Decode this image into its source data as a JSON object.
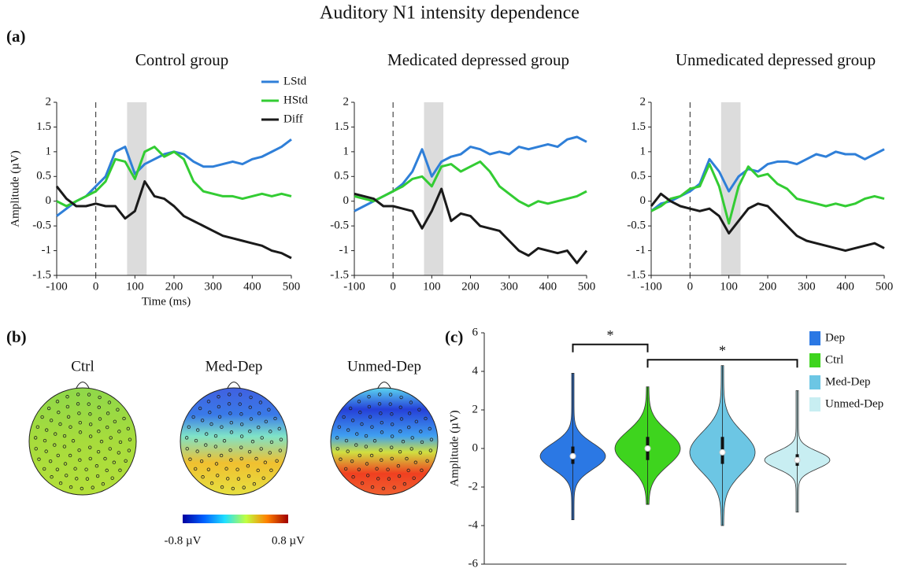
{
  "title": "Auditory N1 intensity dependence",
  "panel_labels": [
    "(a)",
    "(b)",
    "(c)"
  ],
  "topomaps": {
    "labels": [
      "Ctrl",
      "Med-Dep",
      "Unmed-Dep"
    ],
    "colorbar": {
      "min_label": "-0.8 µV",
      "max_label": "0.8 µV"
    }
  },
  "chart_data": [
    {
      "type": "line",
      "title": "Control group",
      "xlabel": "Time (ms)",
      "ylabel": "Amplitude (µV)",
      "legend": "upper right",
      "x": [
        -100,
        -75,
        -50,
        -25,
        0,
        25,
        50,
        75,
        100,
        125,
        150,
        175,
        200,
        225,
        250,
        275,
        300,
        325,
        350,
        375,
        400,
        425,
        450,
        475,
        500
      ],
      "xlim": [
        -100,
        500
      ],
      "xticks": [
        -100,
        0,
        100,
        200,
        300,
        400,
        500
      ],
      "ylim": [
        -1.5,
        2
      ],
      "yticks": [
        -1.5,
        -1,
        -0.5,
        0,
        0.5,
        1,
        1.5,
        2
      ],
      "shade": [
        80,
        130
      ],
      "vline": 0,
      "series": [
        {
          "name": "LStd",
          "color": "#2f7fd8",
          "values": [
            -0.3,
            -0.15,
            0,
            0.1,
            0.3,
            0.5,
            1.0,
            1.1,
            0.55,
            0.75,
            0.85,
            0.95,
            1.0,
            0.95,
            0.8,
            0.7,
            0.7,
            0.75,
            0.8,
            0.75,
            0.85,
            0.9,
            1.0,
            1.1,
            1.25
          ]
        },
        {
          "name": "HStd",
          "color": "#33cc33",
          "values": [
            0,
            -0.1,
            0,
            0.1,
            0.2,
            0.4,
            0.85,
            0.8,
            0.45,
            1.0,
            1.1,
            0.9,
            1.0,
            0.85,
            0.4,
            0.2,
            0.15,
            0.1,
            0.1,
            0.05,
            0.1,
            0.15,
            0.1,
            0.15,
            0.1
          ]
        },
        {
          "name": "Diff",
          "color": "#1a1a1a",
          "values": [
            0.3,
            0.05,
            -0.1,
            -0.1,
            -0.05,
            -0.1,
            -0.1,
            -0.35,
            -0.2,
            0.4,
            0.1,
            0.05,
            -0.1,
            -0.3,
            -0.4,
            -0.5,
            -0.6,
            -0.7,
            -0.75,
            -0.8,
            -0.85,
            -0.9,
            -1.0,
            -1.05,
            -1.15
          ]
        }
      ]
    },
    {
      "type": "line",
      "title": "Medicated depressed group",
      "x": [
        -100,
        -75,
        -50,
        -25,
        0,
        25,
        50,
        75,
        100,
        125,
        150,
        175,
        200,
        225,
        250,
        275,
        300,
        325,
        350,
        375,
        400,
        425,
        450,
        475,
        500
      ],
      "xlim": [
        -100,
        500
      ],
      "xticks": [
        -100,
        0,
        100,
        200,
        300,
        400,
        500
      ],
      "ylim": [
        -1.5,
        2
      ],
      "yticks": [
        -1.5,
        -1,
        -0.5,
        0,
        0.5,
        1,
        1.5,
        2
      ],
      "shade": [
        80,
        130
      ],
      "vline": 0,
      "series": [
        {
          "name": "LStd",
          "color": "#2f7fd8",
          "values": [
            -0.2,
            -0.1,
            0,
            0.1,
            0.2,
            0.35,
            0.6,
            1.05,
            0.5,
            0.8,
            0.9,
            0.95,
            1.1,
            1.05,
            0.95,
            1.0,
            0.95,
            1.1,
            1.05,
            1.1,
            1.15,
            1.1,
            1.25,
            1.3,
            1.2
          ]
        },
        {
          "name": "HStd",
          "color": "#33cc33",
          "values": [
            0.1,
            0.05,
            0,
            0.1,
            0.2,
            0.3,
            0.45,
            0.5,
            0.3,
            0.7,
            0.75,
            0.6,
            0.7,
            0.8,
            0.6,
            0.3,
            0.15,
            0,
            -0.1,
            0,
            -0.05,
            0,
            0.05,
            0.1,
            0.2
          ]
        },
        {
          "name": "Diff",
          "color": "#1a1a1a",
          "values": [
            0.15,
            0.1,
            0.05,
            -0.1,
            -0.1,
            -0.15,
            -0.2,
            -0.55,
            -0.2,
            0.25,
            -0.4,
            -0.25,
            -0.3,
            -0.5,
            -0.55,
            -0.6,
            -0.8,
            -1.0,
            -1.1,
            -0.95,
            -1.0,
            -1.05,
            -1.0,
            -1.25,
            -1.0
          ]
        }
      ]
    },
    {
      "type": "line",
      "title": "Unmedicated depressed group",
      "x": [
        -100,
        -75,
        -50,
        -25,
        0,
        25,
        50,
        75,
        100,
        125,
        150,
        175,
        200,
        225,
        250,
        275,
        300,
        325,
        350,
        375,
        400,
        425,
        450,
        475,
        500
      ],
      "xlim": [
        -100,
        500
      ],
      "xticks": [
        -100,
        0,
        100,
        200,
        300,
        400,
        500
      ],
      "ylim": [
        -1.5,
        2
      ],
      "yticks": [
        -1.5,
        -1,
        -0.5,
        0,
        0.5,
        1,
        1.5,
        2
      ],
      "shade": [
        80,
        130
      ],
      "vline": 0,
      "series": [
        {
          "name": "LStd",
          "color": "#2f7fd8",
          "values": [
            -0.2,
            -0.05,
            0,
            0.1,
            0.2,
            0.35,
            0.85,
            0.6,
            0.2,
            0.5,
            0.65,
            0.6,
            0.75,
            0.8,
            0.8,
            0.75,
            0.85,
            0.95,
            0.9,
            1.0,
            0.95,
            0.95,
            0.85,
            0.95,
            1.05
          ]
        },
        {
          "name": "HStd",
          "color": "#33cc33",
          "values": [
            -0.2,
            -0.1,
            0.05,
            0.1,
            0.25,
            0.3,
            0.75,
            0.3,
            -0.45,
            0.3,
            0.7,
            0.5,
            0.55,
            0.35,
            0.25,
            0.05,
            0,
            -0.05,
            -0.1,
            -0.05,
            -0.1,
            -0.05,
            0.05,
            0.1,
            0.05
          ]
        },
        {
          "name": "Diff",
          "color": "#1a1a1a",
          "values": [
            -0.1,
            0.15,
            0,
            -0.1,
            -0.15,
            -0.2,
            -0.15,
            -0.3,
            -0.65,
            -0.4,
            -0.15,
            -0.05,
            -0.1,
            -0.3,
            -0.5,
            -0.7,
            -0.8,
            -0.85,
            -0.9,
            -0.95,
            -1.0,
            -0.95,
            -0.9,
            -0.85,
            -0.95
          ]
        }
      ]
    },
    {
      "type": "violin",
      "ylabel": "Amplitude (µV)",
      "legend": "upper right",
      "categories": [
        "Dep",
        "Ctrl",
        "Med-Dep",
        "Unmed-Dep"
      ],
      "colors": [
        "#2b78e4",
        "#3ed41e",
        "#6cc6e4",
        "#c8eef2"
      ],
      "median": [
        -0.4,
        0,
        -0.2,
        -0.6
      ],
      "q1": [
        -0.8,
        -0.6,
        -0.8,
        -0.9
      ],
      "q3": [
        0.1,
        0.6,
        0.6,
        -0.3
      ],
      "min": [
        -3.7,
        -2.9,
        -4.0,
        -3.3
      ],
      "max": [
        3.9,
        3.2,
        4.3,
        3.0
      ],
      "ylim": [
        -6,
        6
      ],
      "yticks": [
        -6,
        -4,
        -2,
        0,
        2,
        4,
        6
      ],
      "significance": [
        {
          "pair": [
            0,
            1
          ],
          "y": 5.4,
          "label": "*"
        },
        {
          "pair": [
            1,
            3
          ],
          "y": 4.6,
          "label": "*"
        }
      ]
    }
  ]
}
